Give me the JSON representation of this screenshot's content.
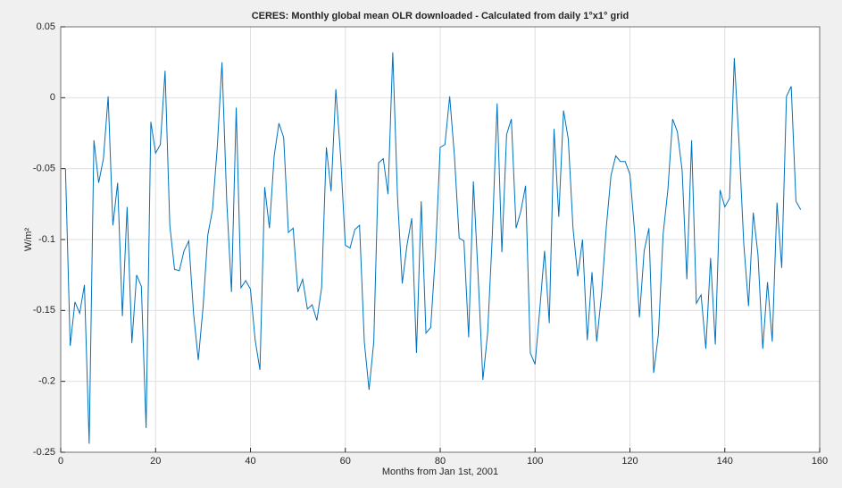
{
  "chart_data": {
    "type": "line",
    "title": "CERES: Monthly global mean OLR downloaded - Calculated from daily 1°x1° grid",
    "xlabel": "Months from Jan 1st, 2001",
    "ylabel": "W/m²",
    "xlim": [
      0,
      160
    ],
    "xticks": [
      0,
      20,
      40,
      60,
      80,
      100,
      120,
      140,
      160
    ],
    "ylim": [
      -0.25,
      0.05
    ],
    "yticks": [
      -0.25,
      -0.2,
      -0.15,
      -0.1,
      -0.05,
      0,
      0.05
    ],
    "grid": true,
    "series": [
      {
        "color": "#0072bd",
        "x": [
          1,
          2,
          3,
          4,
          5,
          6,
          7,
          8,
          9,
          10,
          11,
          12,
          13,
          14,
          15,
          16,
          17,
          18,
          19,
          20,
          21,
          22,
          23,
          24,
          25,
          26,
          27,
          28,
          29,
          30,
          31,
          32,
          33,
          34,
          35,
          36,
          37,
          38,
          39,
          40,
          41,
          42,
          43,
          44,
          45,
          46,
          47,
          48,
          49,
          50,
          51,
          52,
          53,
          54,
          55,
          56,
          57,
          58,
          59,
          60,
          61,
          62,
          63,
          64,
          65,
          66,
          67,
          68,
          69,
          70,
          71,
          72,
          73,
          74,
          75,
          76,
          77,
          78,
          79,
          80,
          81,
          82,
          83,
          84,
          85,
          86,
          87,
          88,
          89,
          90,
          91,
          92,
          93,
          94,
          95,
          96,
          97,
          98,
          99,
          100,
          101,
          102,
          103,
          104,
          105,
          106,
          107,
          108,
          109,
          110,
          111,
          112,
          113,
          114,
          115,
          116,
          117,
          118,
          119,
          120,
          121,
          122,
          123,
          124,
          125,
          126,
          127,
          128,
          129,
          130,
          131,
          132,
          133,
          134,
          135,
          136,
          137,
          138,
          139,
          140,
          141,
          142,
          143,
          144,
          145,
          146,
          147,
          148,
          149,
          150,
          151,
          152,
          153,
          154,
          155,
          156
        ],
        "values": [
          -0.05,
          -0.175,
          -0.144,
          -0.152,
          -0.132,
          -0.244,
          -0.03,
          -0.06,
          -0.043,
          0.001,
          -0.09,
          -0.06,
          -0.154,
          -0.077,
          -0.173,
          -0.125,
          -0.133,
          -0.233,
          -0.017,
          -0.039,
          -0.033,
          0.019,
          -0.09,
          -0.121,
          -0.122,
          -0.108,
          -0.101,
          -0.152,
          -0.185,
          -0.148,
          -0.097,
          -0.079,
          -0.035,
          0.025,
          -0.073,
          -0.137,
          -0.007,
          -0.134,
          -0.129,
          -0.135,
          -0.171,
          -0.192,
          -0.063,
          -0.092,
          -0.041,
          -0.018,
          -0.028,
          -0.095,
          -0.092,
          -0.137,
          -0.128,
          -0.149,
          -0.146,
          -0.157,
          -0.134,
          -0.035,
          -0.066,
          0.006,
          -0.041,
          -0.104,
          -0.106,
          -0.093,
          -0.09,
          -0.172,
          -0.206,
          -0.172,
          -0.046,
          -0.043,
          -0.068,
          0.032,
          -0.07,
          -0.131,
          -0.104,
          -0.085,
          -0.18,
          -0.073,
          -0.166,
          -0.162,
          -0.11,
          -0.035,
          -0.033,
          0.001,
          -0.041,
          -0.099,
          -0.101,
          -0.169,
          -0.059,
          -0.126,
          -0.199,
          -0.166,
          -0.096,
          -0.004,
          -0.109,
          -0.026,
          -0.015,
          -0.092,
          -0.08,
          -0.062,
          -0.18,
          -0.188,
          -0.149,
          -0.108,
          -0.159,
          -0.022,
          -0.084,
          -0.009,
          -0.029,
          -0.092,
          -0.126,
          -0.1,
          -0.171,
          -0.123,
          -0.172,
          -0.139,
          -0.092,
          -0.055,
          -0.041,
          -0.045,
          -0.045,
          -0.054,
          -0.095,
          -0.155,
          -0.108,
          -0.092,
          -0.194,
          -0.167,
          -0.096,
          -0.065,
          -0.015,
          -0.024,
          -0.051,
          -0.128,
          -0.03,
          -0.145,
          -0.139,
          -0.177,
          -0.113,
          -0.174,
          -0.065,
          -0.077,
          -0.071,
          0.028,
          -0.032,
          -0.103,
          -0.147,
          -0.081,
          -0.111,
          -0.177,
          -0.13,
          -0.172,
          -0.074,
          -0.12,
          0.001,
          0.008,
          -0.073,
          -0.079
        ]
      }
    ]
  }
}
